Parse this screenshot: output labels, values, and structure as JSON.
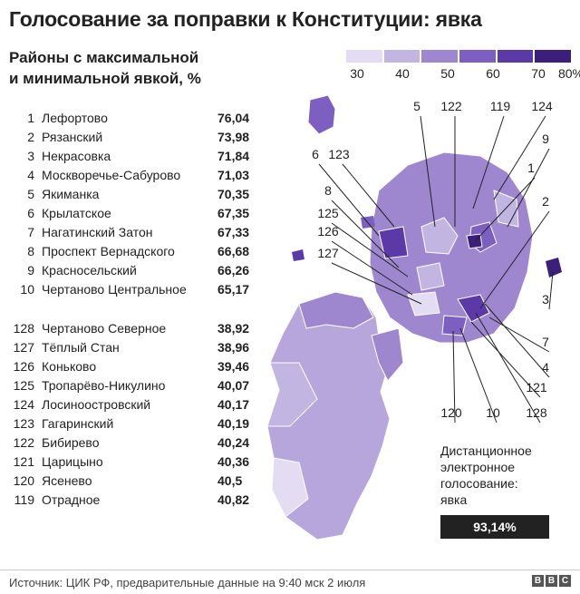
{
  "title": "Голосование за поправки к Конституции: явка",
  "subtitle_line1": "Районы с максимальной",
  "subtitle_line2": "и минимальной явкой, %",
  "legend": {
    "ticks": [
      "30",
      "40",
      "50",
      "60",
      "70",
      "80%"
    ],
    "colors": [
      "#e3dcf2",
      "#c3b5e2",
      "#9e87cf",
      "#7d5ec1",
      "#5b3aa8",
      "#3c1f7a"
    ]
  },
  "top_districts": [
    {
      "rank": "1",
      "name": "Лефортово",
      "value": "76,04"
    },
    {
      "rank": "2",
      "name": "Рязанский",
      "value": "73,98"
    },
    {
      "rank": "3",
      "name": "Некрасовка",
      "value": "71,84"
    },
    {
      "rank": "4",
      "name": "Москворечье-Сабурово",
      "value": "71,03"
    },
    {
      "rank": "5",
      "name": "Якиманка",
      "value": "70,35"
    },
    {
      "rank": "6",
      "name": "Крылатское",
      "value": "67,35"
    },
    {
      "rank": "7",
      "name": "Нагатинский Затон",
      "value": "67,33"
    },
    {
      "rank": "8",
      "name": "Проспект Вернадского",
      "value": "66,68"
    },
    {
      "rank": "9",
      "name": "Красносельский",
      "value": "66,26"
    },
    {
      "rank": "10",
      "name": "Чертаново Центральное",
      "value": "65,17"
    }
  ],
  "bottom_districts": [
    {
      "rank": "128",
      "name": "Чертаново Северное",
      "value": "38,92"
    },
    {
      "rank": "127",
      "name": "Тёплый Стан",
      "value": "38,96"
    },
    {
      "rank": "126",
      "name": "Коньково",
      "value": "39,46"
    },
    {
      "rank": "125",
      "name": "Тропарёво-Никулино",
      "value": "40,07"
    },
    {
      "rank": "124",
      "name": "Лосиноостровский",
      "value": "40,17"
    },
    {
      "rank": "123",
      "name": "Гагаринский",
      "value": "40,19"
    },
    {
      "rank": "122",
      "name": "Бибирево",
      "value": "40,24"
    },
    {
      "rank": "121",
      "name": "Царицыно",
      "value": "40,36"
    },
    {
      "rank": "120",
      "name": "Ясенево",
      "value": "40,5"
    },
    {
      "rank": "119",
      "name": "Отрадное",
      "value": "40,82"
    }
  ],
  "map_labels": [
    "5",
    "122",
    "119",
    "124",
    "9",
    "6",
    "123",
    "1",
    "8",
    "2",
    "125",
    "126",
    "127",
    "3",
    "7",
    "4",
    "121",
    "120",
    "10",
    "128"
  ],
  "remote_voting": {
    "line1": "Дистанционное",
    "line2": "электронное",
    "line3": "голосование:",
    "line4": "явка",
    "value": "93,14%"
  },
  "source": "Источник: ЦИК РФ, предварительные данные на 9:40 мск 2 июля",
  "brand": [
    "B",
    "B",
    "C"
  ]
}
